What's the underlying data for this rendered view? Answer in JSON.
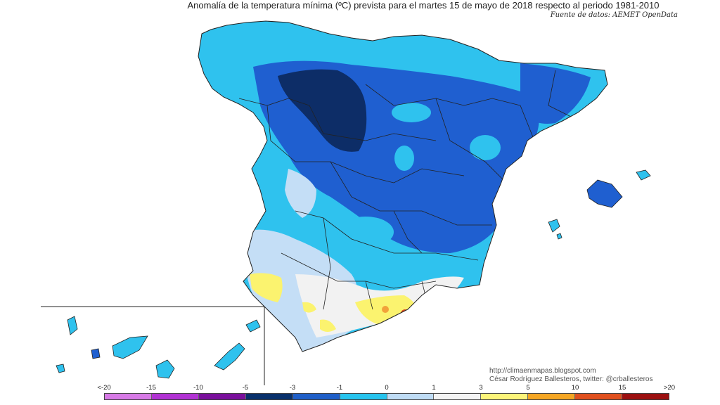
{
  "header": {
    "title": "Anomalía de la temperatura mínima (ºC) prevista para el martes 15 de mayo de 2018 respecto al periodo 1981-2010",
    "source": "Fuente de datos: AEMET OpenData"
  },
  "credits": {
    "url": "http://climaenmapas.blogspot.com",
    "author": "César Rodríguez Ballesteros, twitter: @crballesteros"
  },
  "legend": {
    "tick_labels": [
      "<-20",
      "-15",
      "-10",
      "-5",
      "-3",
      "-1",
      "0",
      "1",
      "3",
      "5",
      "10",
      "15",
      ">20"
    ],
    "colors": [
      "#d77ae6",
      "#b132d3",
      "#7a0f9c",
      "#08306b",
      "#1f5fc8",
      "#27c4ee",
      "#bfdcf5",
      "#f4f4f4",
      "#fdf57a",
      "#f5a623",
      "#e0501e",
      "#9c1010",
      "#6b3a10"
    ]
  },
  "map": {
    "region": "Península Ibérica, Baleares y Canarias",
    "colors": {
      "deep": "#0d2d67",
      "dark_blue": "#1f5fd0",
      "blue": "#2a86e6",
      "cyan": "#2fc2ee",
      "pale_blue": "#c4def6",
      "white": "#f2f2f2",
      "yellow": "#fbf36f",
      "orange": "#f2a23a",
      "red": "#d9461b",
      "sea": "#ffffff",
      "border": "#222222"
    }
  }
}
